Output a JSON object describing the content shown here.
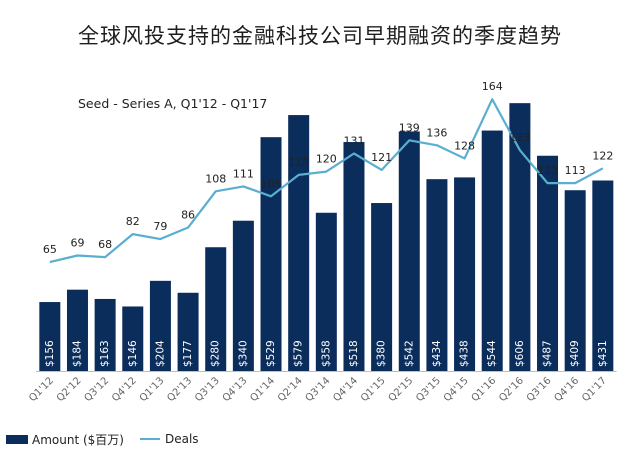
{
  "chart_data": {
    "type": "bar",
    "title": "全球风投支持的金融科技公司早期融资的季度趋势",
    "subtitle": "Seed - Series A, Q1'12 - Q1'17",
    "categories": [
      "Q1'12",
      "Q2'12",
      "Q3'12",
      "Q4'12",
      "Q1'13",
      "Q2'13",
      "Q3'13",
      "Q4'13",
      "Q1'14",
      "Q2'14",
      "Q3'14",
      "Q4'14",
      "Q1'15",
      "Q2'15",
      "Q3'15",
      "Q4'15",
      "Q1'16",
      "Q2'16",
      "Q3'16",
      "Q4'16",
      "Q1'17"
    ],
    "series": [
      {
        "name": "Amount ($百万)",
        "type": "bar",
        "values": [
          156,
          184,
          163,
          146,
          204,
          177,
          280,
          340,
          529,
          579,
          358,
          518,
          380,
          542,
          434,
          438,
          544,
          606,
          487,
          409,
          431
        ],
        "labels": [
          "$156",
          "$184",
          "$163",
          "$146",
          "$204",
          "$177",
          "$280",
          "$340",
          "$529",
          "$579",
          "$358",
          "$518",
          "$380",
          "$542",
          "$434",
          "$438",
          "$544",
          "$606",
          "$487",
          "$409",
          "$431"
        ],
        "color": "#0a2d5c"
      },
      {
        "name": "Deals",
        "type": "line",
        "values": [
          65,
          69,
          68,
          82,
          79,
          86,
          108,
          111,
          105,
          118,
          120,
          131,
          121,
          139,
          136,
          128,
          164,
          133,
          113,
          113,
          122
        ],
        "color": "#5aaed0"
      }
    ],
    "legend_position": "bottom-left",
    "grid": false
  }
}
